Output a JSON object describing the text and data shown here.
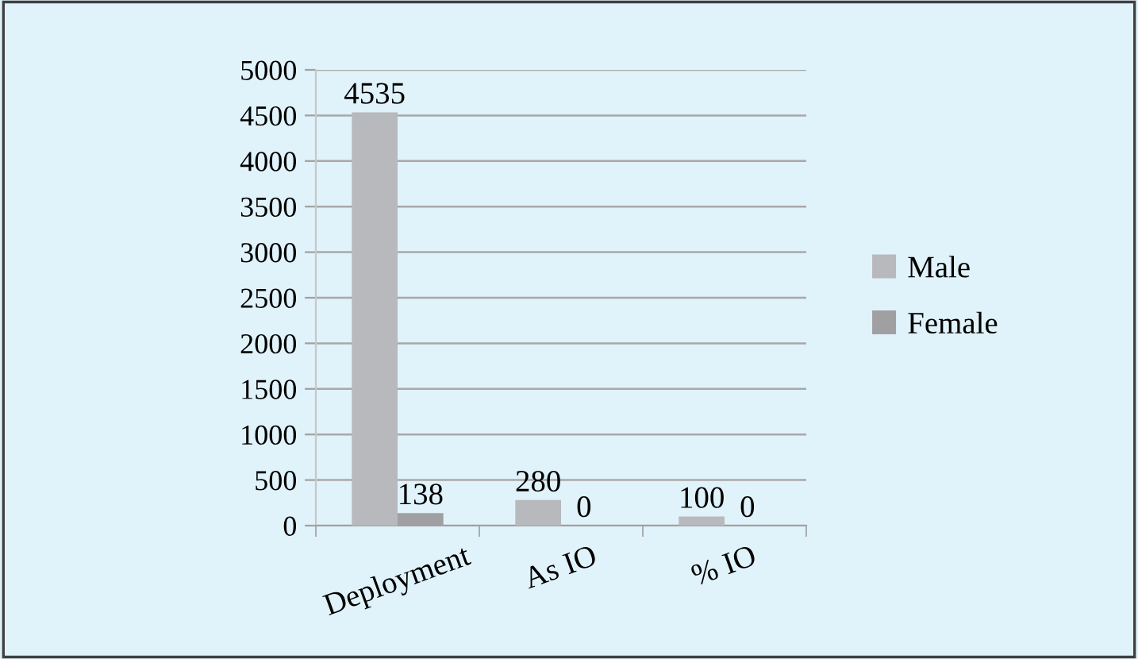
{
  "chart_data": {
    "type": "bar",
    "categories": [
      "Deployment",
      "As IO",
      "% IO"
    ],
    "series": [
      {
        "name": "Male",
        "color": "#b8b9bd",
        "values": [
          4535,
          280,
          100
        ]
      },
      {
        "name": "Female",
        "color": "#a0a0a3",
        "values": [
          138,
          0,
          0
        ]
      }
    ],
    "ylim": [
      0,
      5000
    ],
    "yticks": [
      0,
      500,
      1000,
      1500,
      2000,
      2500,
      3000,
      3500,
      4000,
      4500,
      5000
    ],
    "grid": "y",
    "legend": "right",
    "data_labels": true
  }
}
